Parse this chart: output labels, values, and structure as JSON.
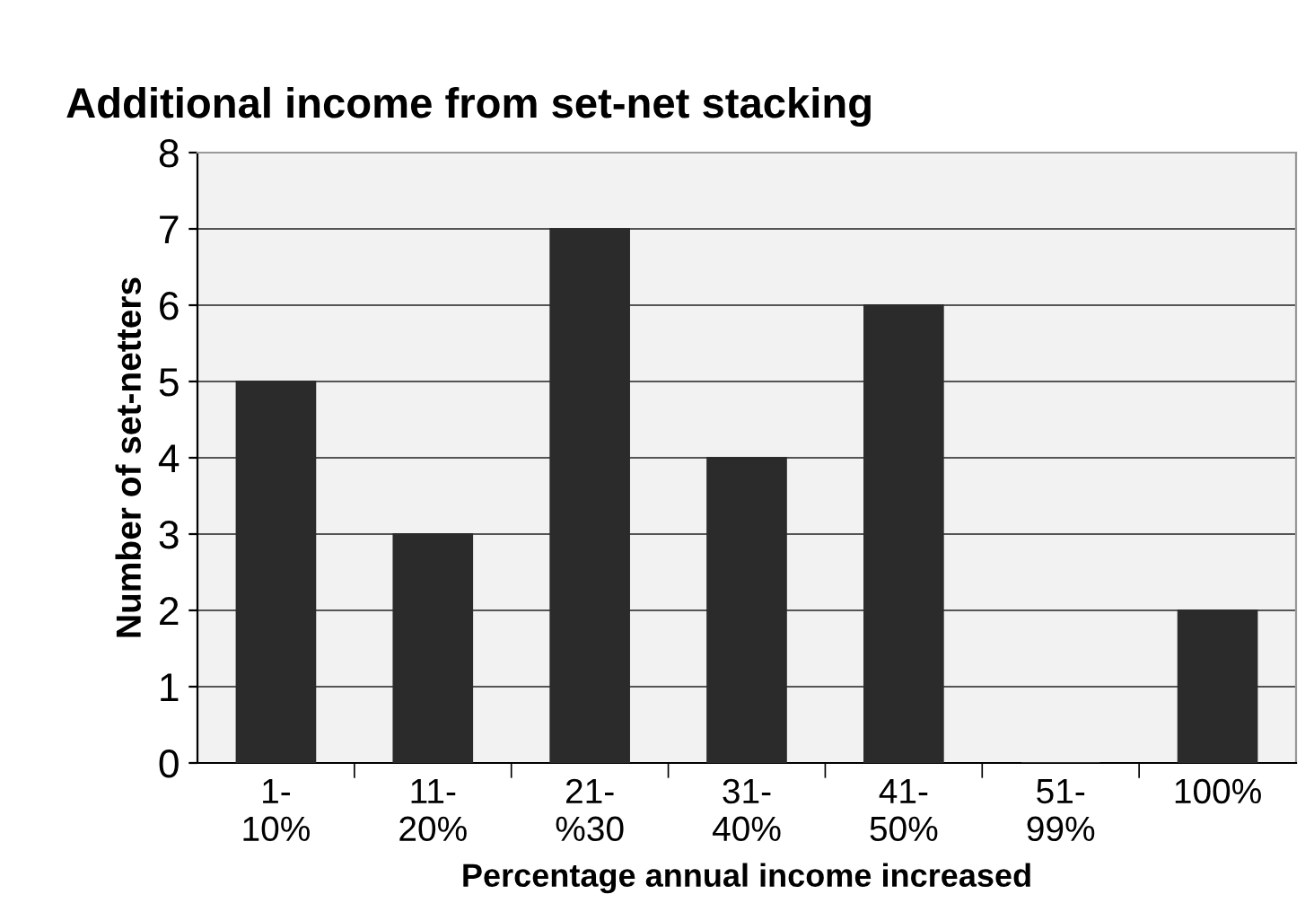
{
  "chart_data": {
    "type": "bar",
    "title": "Additional income from set-net stacking",
    "xlabel": "Percentage annual income increased",
    "ylabel": "Number of set-netters",
    "categories": [
      "1-\n10%",
      "11-\n20%",
      "21-\n%30",
      "31-\n40%",
      "41-\n50%",
      "51-\n99%",
      "100%"
    ],
    "values": [
      5,
      3,
      7,
      4,
      6,
      0,
      2
    ],
    "color": "#2b2b2b",
    "ylim": [
      0,
      8
    ],
    "yticks": [
      0,
      1,
      2,
      3,
      4,
      5,
      6,
      7,
      8
    ],
    "grid": "y",
    "legend": false
  }
}
